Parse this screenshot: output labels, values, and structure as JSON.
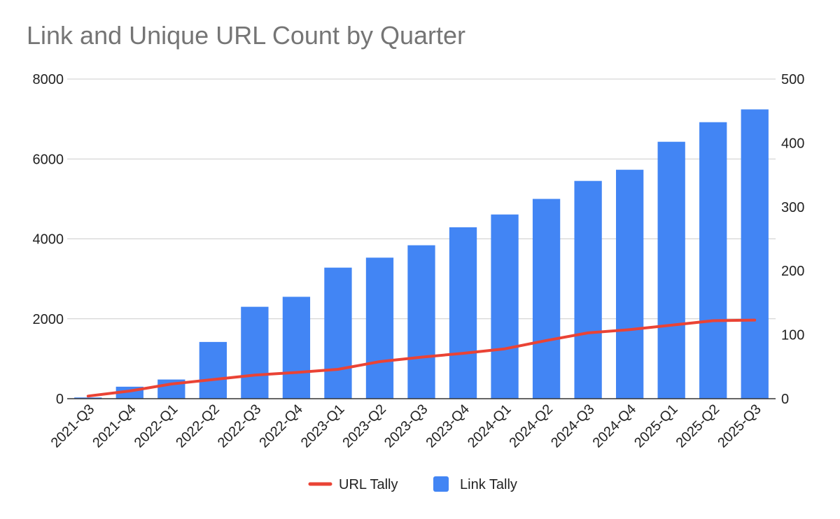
{
  "chart_data": {
    "type": "bar",
    "title": "Link and Unique URL Count by Quarter",
    "categories": [
      "2021-Q3",
      "2021-Q4",
      "2022-Q1",
      "2022-Q2",
      "2022-Q3",
      "2022-Q4",
      "2023-Q1",
      "2023-Q2",
      "2023-Q3",
      "2023-Q4",
      "2024-Q1",
      "2024-Q2",
      "2024-Q3",
      "2024-Q4",
      "2025-Q1",
      "2025-Q2",
      "2025-Q3"
    ],
    "series": [
      {
        "name": "Link Tally",
        "type": "bar",
        "axis": "left",
        "color": "#4285F4",
        "values": [
          30,
          300,
          480,
          1420,
          2300,
          2550,
          3280,
          3530,
          3840,
          4290,
          4610,
          5000,
          5450,
          5730,
          6430,
          6920,
          7240
        ]
      },
      {
        "name": "URL Tally",
        "type": "line",
        "axis": "right",
        "color": "#EA4335",
        "values": [
          4,
          12,
          23,
          30,
          37,
          41,
          46,
          58,
          65,
          71,
          78,
          91,
          103,
          108,
          115,
          122,
          123
        ]
      }
    ],
    "y_left": {
      "min": 0,
      "max": 8000,
      "ticks": [
        "0",
        "2000",
        "4000",
        "6000",
        "8000"
      ]
    },
    "y_right": {
      "min": 0,
      "max": 500,
      "ticks": [
        "0",
        "100",
        "200",
        "300",
        "400",
        "500"
      ]
    },
    "grid": true,
    "legend": {
      "position": "bottom",
      "entries": [
        "URL Tally",
        "Link Tally"
      ]
    }
  }
}
